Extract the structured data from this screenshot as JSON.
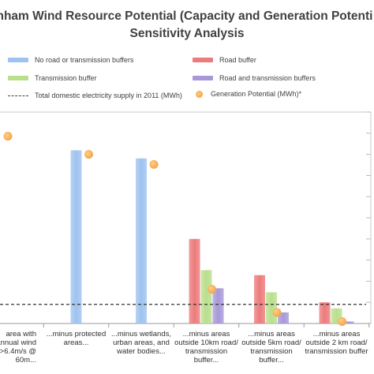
{
  "chart_data": {
    "type": "bar",
    "title_line1": "nham Wind Resource Potential (Capacity and Generation Potenti",
    "title_line2": "Sensitivity Analysis",
    "categories": [
      [
        "area with",
        "annual wind",
        ">6.4m/s @",
        "60m..."
      ],
      [
        "...minus protected",
        "areas..."
      ],
      [
        "...minus wetlands,",
        "urban areas, and",
        "water bodies..."
      ],
      [
        "...minus areas",
        "outside 10km road/",
        "transmission",
        "buffer..."
      ],
      [
        "...minus areas",
        "outside 5km road/",
        "transmission",
        "buffer..."
      ],
      [
        "...minus areas",
        "outside 2 km road/",
        "transmission buffer"
      ]
    ],
    "series": [
      {
        "name": "No road or transmission buffers",
        "color": "#9fc3f0",
        "values": [
          null,
          8.6,
          8.2,
          null,
          null,
          null
        ]
      },
      {
        "name": "Road buffer",
        "color": "#ec7b7b",
        "values": [
          null,
          null,
          null,
          4.2,
          2.4,
          1.05
        ]
      },
      {
        "name": "Transmission buffer",
        "color": "#b9df8c",
        "values": [
          null,
          null,
          null,
          2.65,
          1.55,
          0.75
        ]
      },
      {
        "name": "Road and transmission buffers",
        "color": "#a898d8",
        "values": [
          null,
          null,
          null,
          1.75,
          0.55,
          0.1
        ]
      }
    ],
    "generation_potential": {
      "name": "Generation Potential (MWh)*",
      "color": "#f5a543",
      "values": [
        9.3,
        8.4,
        7.9,
        1.7,
        0.55,
        0.1
      ]
    },
    "total_supply": {
      "name": "Total domestic electricity supply in 2011 (MWh)",
      "value": 0.95
    },
    "ylim": [
      0,
      10.5
    ],
    "ytick_count": 11,
    "grid": true,
    "legend_position": "top"
  }
}
